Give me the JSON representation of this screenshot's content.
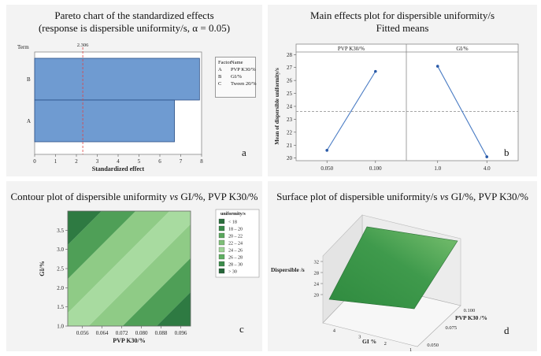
{
  "panel_a": {
    "title_line1": "Pareto chart of the standardized effects",
    "title_line2": "(response is dispersible uniformity/s, α = 0.05)",
    "letter": "a",
    "chart_data": {
      "type": "bar",
      "orientation": "horizontal",
      "y_axis_label": "Term",
      "xlabel": "Standardized effect",
      "categories": [
        "B",
        "A"
      ],
      "values": [
        7.9,
        6.7
      ],
      "xlim": [
        0,
        8
      ],
      "x_ticks": [
        "0",
        "1",
        "2",
        "3",
        "4",
        "5",
        "6",
        "7",
        "8"
      ],
      "reference_line": {
        "value": 2.306,
        "label": "2.306"
      }
    },
    "legend": {
      "header_factor": "Factor",
      "header_name": "Name",
      "rows": [
        {
          "factor": "A",
          "name": "PVP K30/%"
        },
        {
          "factor": "B",
          "name": "GI/%"
        },
        {
          "factor": "C",
          "name": "Tween 20/%"
        }
      ]
    }
  },
  "panel_b": {
    "title_line1": "Main effects plot for dispersible uniformity/s",
    "title_line2": "Fitted means",
    "letter": "b",
    "chart_data": {
      "type": "line",
      "ylabel": "Mean of dispersible uniformity/s",
      "ylim": [
        19.8,
        28.2
      ],
      "y_ticks": [
        "20",
        "21",
        "22",
        "23",
        "24",
        "25",
        "26",
        "27",
        "28"
      ],
      "grand_mean": 23.6,
      "panels": [
        {
          "name": "PVP K30/%",
          "x": [
            "0.050",
            "0.100"
          ],
          "y": [
            20.6,
            26.7
          ]
        },
        {
          "name": "GI/%",
          "x": [
            "1.0",
            "4.0"
          ],
          "y": [
            27.1,
            20.1
          ]
        }
      ]
    }
  },
  "panel_c": {
    "title_prefix": "Contour plot of dispersible uniformity ",
    "title_vs": "vs",
    "title_suffix": " GI/%, PVP K30/%",
    "letter": "c",
    "chart_data": {
      "type": "heatmap",
      "xlabel": "PVP K30/%",
      "ylabel": "GI/%",
      "x_ticks": [
        "0.056",
        "0.064",
        "0.072",
        "0.080",
        "0.088",
        "0.096"
      ],
      "y_ticks": [
        "1.0",
        "1.5",
        "2.0",
        "2.5",
        "3.0",
        "3.5"
      ],
      "xlim": [
        0.05,
        0.1
      ],
      "ylim": [
        1.0,
        4.0
      ],
      "legend_title": "uniformity/s",
      "levels": [
        {
          "label": "< 18",
          "color": "#2a6e3c"
        },
        {
          "label": "18 – 20",
          "color": "#3a8a4a"
        },
        {
          "label": "20 – 22",
          "color": "#5aa75d"
        },
        {
          "label": "22 – 24",
          "color": "#7fbf78"
        },
        {
          "label": "24 – 26",
          "color": "#9fd497"
        },
        {
          "label": "26 – 28",
          "color": "#5fae62"
        },
        {
          "label": "28 – 30",
          "color": "#3c8c4b"
        },
        {
          "label": "> 30",
          "color": "#256639"
        }
      ]
    }
  },
  "panel_d": {
    "title_prefix": "Surface plot of dispersible uniformity/s ",
    "title_vs": "vs",
    "title_suffix": " GI/%, PVP K30/%",
    "letter": "d",
    "chart_data": {
      "type": "area",
      "surface": "3d",
      "zlabel": "Dispersible /s",
      "z_ticks": [
        "20",
        "24",
        "28",
        "32"
      ],
      "x_label": "GI %",
      "x_ticks": [
        "1",
        "2",
        "3",
        "4"
      ],
      "y_label": "PVP K30 /%",
      "y_ticks": [
        "0.050",
        "0.075",
        "0.100"
      ],
      "surface_color": "#3f9a4c"
    }
  }
}
